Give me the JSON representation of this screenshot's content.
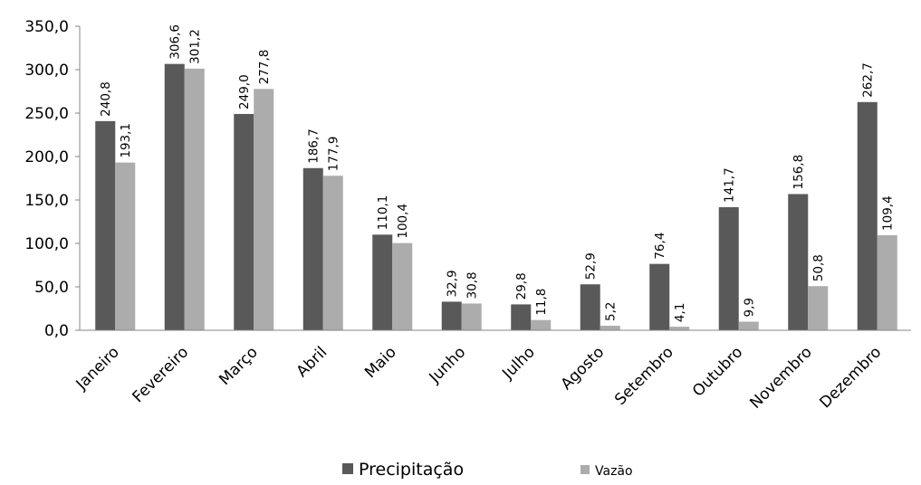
{
  "chart_data": {
    "type": "bar",
    "title": "",
    "xlabel": "",
    "ylabel": "",
    "ylim": [
      0,
      350
    ],
    "ytick_step": 50,
    "ytick_labels": [
      "0,0",
      "50,0",
      "100,0",
      "150,0",
      "200,0",
      "250,0",
      "300,0",
      "350,0"
    ],
    "grid": false,
    "legend_position": "bottom",
    "categories": [
      "Janeiro",
      "Fevereiro",
      "Março",
      "Abril",
      "Maio",
      "Junho",
      "Julho",
      "Agosto",
      "Setembro",
      "Outubro",
      "Novembro",
      "Dezembro"
    ],
    "series": [
      {
        "name": "Precipitação",
        "color": "#595959",
        "values": [
          240.8,
          306.6,
          249.0,
          186.7,
          110.1,
          32.9,
          29.8,
          52.9,
          76.4,
          141.7,
          156.8,
          262.7
        ],
        "labels": [
          "240,8",
          "306,6",
          "249,0",
          "186,7",
          "110,1",
          "32,9",
          "29,8",
          "52,9",
          "76,4",
          "141,7",
          "156,8",
          "262,7"
        ]
      },
      {
        "name": "Vazão",
        "color": "#acacac",
        "values": [
          193.1,
          301.2,
          277.8,
          177.9,
          100.4,
          30.8,
          11.8,
          5.2,
          4.1,
          9.9,
          50.8,
          109.4
        ],
        "labels": [
          "193,1",
          "301,2",
          "277,8",
          "177,9",
          "100,4",
          "30,8",
          "11,8",
          "5,2",
          "4,1",
          "9,9",
          "50,8",
          "109,4"
        ]
      }
    ]
  }
}
